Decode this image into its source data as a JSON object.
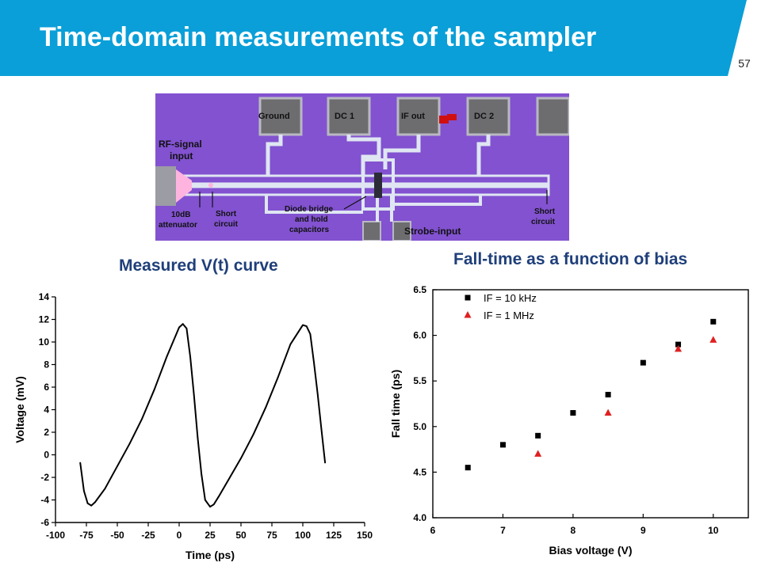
{
  "header": {
    "title": "Time-domain measurements of the sampler",
    "page_number": "57",
    "band_color": "#0a9fd8"
  },
  "chip": {
    "labels": {
      "ground": "Ground",
      "dc1": "DC 1",
      "if_out": "IF out",
      "dc2": "DC 2",
      "rf_line1": "RF-signal",
      "rf_line2": "input",
      "att_line1": "10dB",
      "att_line2": "attenuator",
      "short1_line1": "Short",
      "short1_line2": "circuit",
      "diode_line1": "Diode bridge",
      "diode_line2": "and hold",
      "diode_line3": "capacitors",
      "strobe": "Strobe-input",
      "short2_line1": "Short",
      "short2_line2": "circuit"
    },
    "colors": {
      "substrate": "#8a58d8",
      "metal": "#dfe6f2",
      "label": "#111111"
    }
  },
  "vt_chart_title": "Measured V(t) curve",
  "fall_chart_title": "Fall-time as a function of bias",
  "chart_data": [
    {
      "type": "line",
      "xlabel": "Time (ps)",
      "ylabel": "Voltage (mV)",
      "xlim": [
        -100,
        150
      ],
      "ylim": [
        -6,
        14
      ],
      "xticks": [
        "-100",
        "-75",
        "-50",
        "-25",
        "0",
        "25",
        "50",
        "75",
        "100",
        "125",
        "150"
      ],
      "yticks": [
        "-6",
        "-4",
        "-2",
        "0",
        "2",
        "4",
        "6",
        "8",
        "10",
        "12",
        "14"
      ],
      "series": [
        {
          "color": "#000000",
          "x": [
            -80,
            -77,
            -74,
            -71,
            -68,
            -60,
            -50,
            -40,
            -30,
            -20,
            -10,
            0,
            3,
            6,
            9,
            12,
            15,
            18,
            21,
            25,
            28,
            32,
            40,
            50,
            60,
            70,
            80,
            90,
            100,
            103,
            106,
            109,
            112,
            115,
            118
          ],
          "y": [
            -0.7,
            -3.2,
            -4.3,
            -4.5,
            -4.2,
            -3.0,
            -1.0,
            1.0,
            3.2,
            5.8,
            8.7,
            11.3,
            11.6,
            11.2,
            8.7,
            5.3,
            1.5,
            -1.7,
            -4.0,
            -4.6,
            -4.4,
            -3.7,
            -2.2,
            -0.3,
            1.8,
            4.2,
            6.9,
            9.8,
            11.5,
            11.4,
            10.7,
            8.2,
            5.4,
            2.3,
            -0.7
          ]
        }
      ]
    },
    {
      "type": "scatter",
      "xlabel": "Bias voltage (V)",
      "ylabel": "Fall time (ps)",
      "xlim": [
        6,
        10.5
      ],
      "ylim": [
        4.0,
        6.5
      ],
      "xticks": [
        "6",
        "7",
        "8",
        "9",
        "10"
      ],
      "yticks": [
        "4.0",
        "4.5",
        "5.0",
        "5.5",
        "6.0",
        "6.5"
      ],
      "legend": "top-left",
      "series": [
        {
          "name": "IF = 10 kHz",
          "marker": "square",
          "color": "#000000",
          "x": [
            6.5,
            7.0,
            7.5,
            8.0,
            8.5,
            9.0,
            9.5,
            10.0
          ],
          "y": [
            4.55,
            4.8,
            4.9,
            5.15,
            5.35,
            5.7,
            5.9,
            6.15
          ]
        },
        {
          "name": "IF = 1 MHz",
          "marker": "triangle",
          "color": "#e02020",
          "x": [
            7.5,
            8.5,
            9.5,
            10.0
          ],
          "y": [
            4.7,
            5.15,
            5.85,
            5.95
          ]
        }
      ]
    }
  ]
}
